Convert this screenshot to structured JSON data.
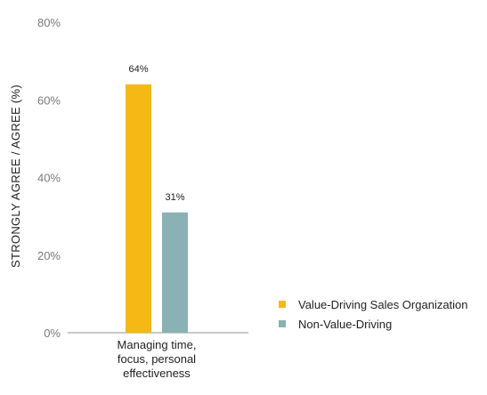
{
  "chart_data": {
    "type": "bar",
    "categories": [
      "Managing time,\nfocus, personal\neffectiveness"
    ],
    "series": [
      {
        "name": "Value-Driving Sales Organization",
        "values": [
          64
        ],
        "color": "#f5b916",
        "label": "64%"
      },
      {
        "name": "Non-Value-Driving",
        "values": [
          31
        ],
        "color": "#8ab2b4",
        "label": "31%"
      }
    ],
    "ylabel": "STRONGLY AGREE / AGREE (%)",
    "xlabel": "",
    "ylim": [
      0,
      80
    ],
    "yticks": [
      "0%",
      "20%",
      "40%",
      "60%",
      "80%"
    ],
    "ytick_values": [
      0,
      20,
      40,
      60,
      80
    ],
    "grid": false,
    "legend_position": "right"
  }
}
